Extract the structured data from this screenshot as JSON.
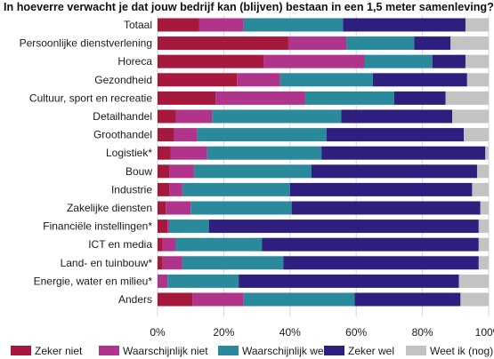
{
  "chart_data": {
    "type": "bar",
    "orientation": "horizontal",
    "stacked": true,
    "title": "In hoeverre verwacht je dat jouw bedrijf kan (blijven) bestaan in een 1,5 meter samenleving?",
    "xlabel": "",
    "ylabel": "",
    "xlim": [
      0,
      100
    ],
    "x_ticks": [
      "0%",
      "20%",
      "40%",
      "60%",
      "80%",
      "100%"
    ],
    "grid": true,
    "legend_position": "bottom",
    "categories": [
      "Totaal",
      "Persoonlijke dienstverlening",
      "Horeca",
      "Gezondheid",
      "Cultuur, sport en recreatie",
      "Detailhandel",
      "Groothandel",
      "Logistiek*",
      "Bouw",
      "Industrie",
      "Zakelijke diensten",
      "Financiële instellingen*",
      "ICT en media",
      "Land- en tuinbouw*",
      "Energie, water en milieu*",
      "Anders"
    ],
    "series": [
      {
        "name": "Zeker niet",
        "color": "#a6193c",
        "values": [
          12.5,
          39.5,
          32,
          24,
          17.5,
          5.5,
          5,
          4,
          3.5,
          3.5,
          2.5,
          3,
          1.5,
          1.5,
          0,
          10.5
        ]
      },
      {
        "name": "Waarschijnlijk niet",
        "color": "#b0358a",
        "values": [
          13.5,
          17.5,
          30.5,
          13,
          27,
          11,
          7,
          11,
          7.5,
          4,
          7.5,
          0.5,
          4,
          6,
          3,
          15.5
        ]
      },
      {
        "name": "Waarschijnlijk wel",
        "color": "#2a8a9c",
        "values": [
          30,
          20.5,
          20.5,
          28,
          27,
          39,
          39,
          34.5,
          35.5,
          32.5,
          30.5,
          12,
          26,
          30.5,
          21.5,
          33.5
        ]
      },
      {
        "name": "Zeker wel",
        "color": "#2e1f7f",
        "values": [
          37,
          11,
          10,
          28.5,
          15.5,
          33.5,
          41.5,
          49.5,
          50,
          55,
          57,
          81.5,
          65.5,
          59,
          66.5,
          32
        ]
      },
      {
        "name": "Weet ik (nog) niet",
        "color": "#c3c3c3",
        "values": [
          7,
          11.5,
          7,
          6.5,
          13,
          11,
          7.5,
          1,
          3.5,
          5,
          2.5,
          3,
          3,
          3,
          9,
          8.5
        ]
      }
    ]
  }
}
